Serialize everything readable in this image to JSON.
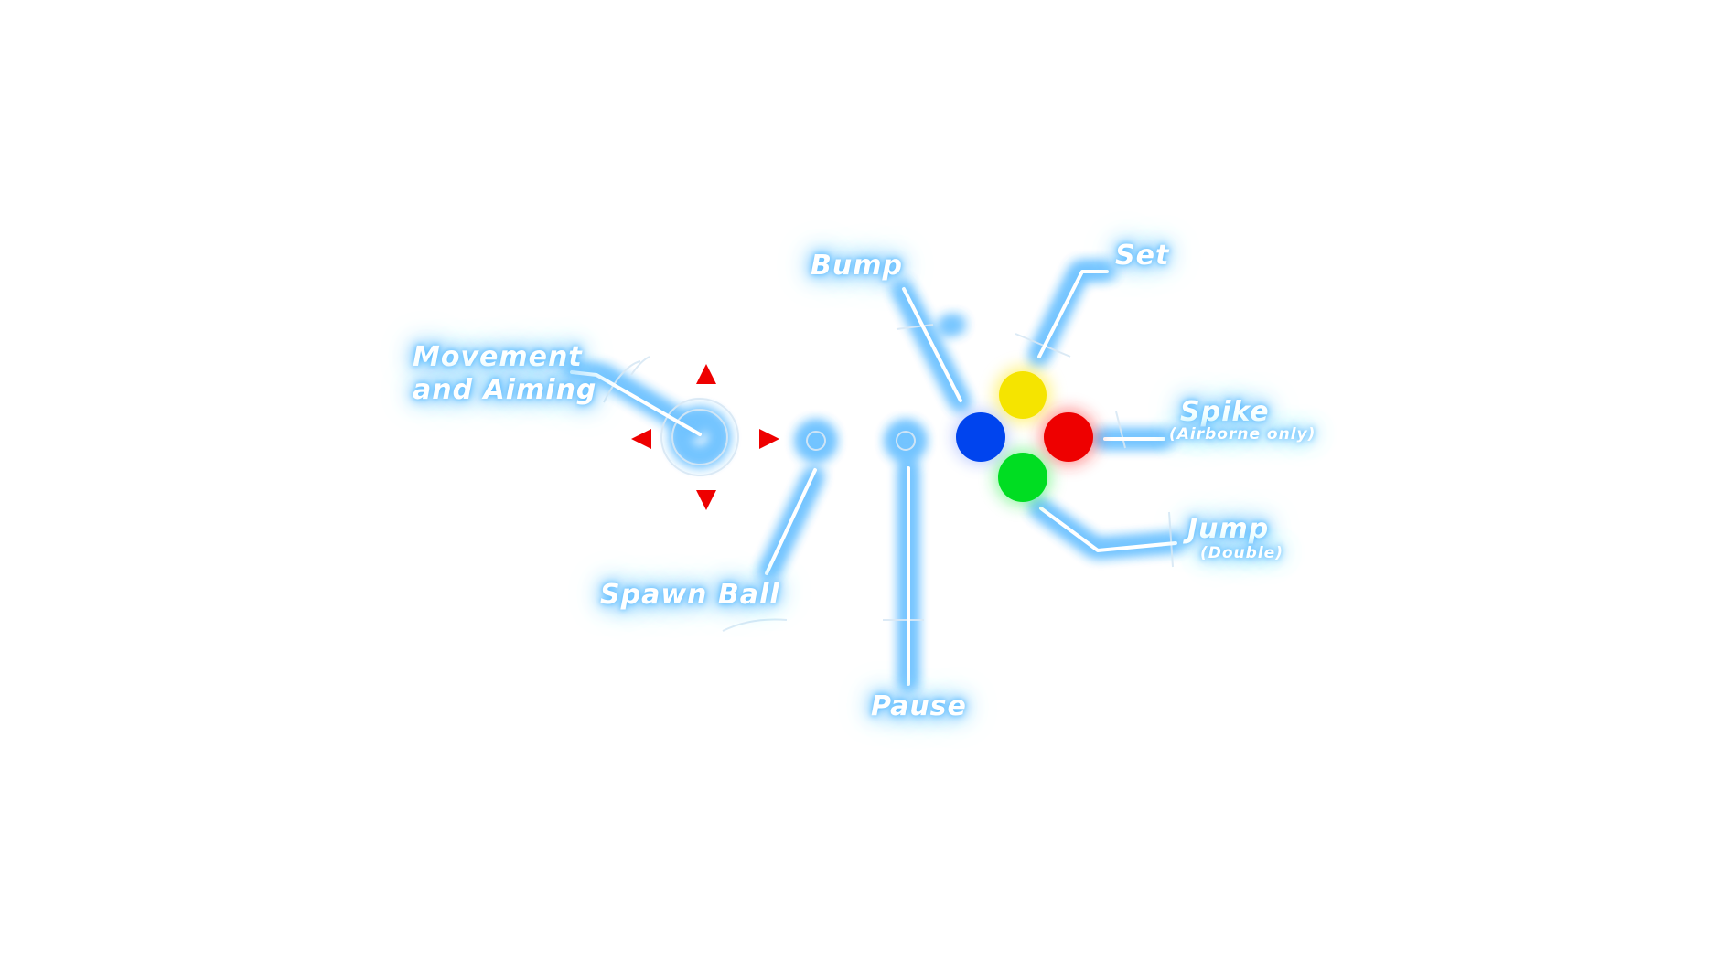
{
  "controls": {
    "movement": {
      "line1": "Movement",
      "line2": "and Aiming"
    },
    "spawn_ball": {
      "label": "Spawn Ball"
    },
    "pause": {
      "label": "Pause"
    },
    "bump": {
      "label": "Bump"
    },
    "set": {
      "label": "Set"
    },
    "spike": {
      "label": "Spike",
      "note": "(Airborne only)"
    },
    "jump": {
      "label": "Jump",
      "note": "(Double)"
    }
  },
  "dpad": {
    "arrow_color": "#ee0000",
    "arrows": [
      "arrow-up-icon",
      "arrow-down-icon",
      "arrow-left-icon",
      "arrow-right-icon"
    ]
  },
  "face_buttons": {
    "bump": {
      "icon": "blue-button-icon",
      "color": "#0044ee"
    },
    "set": {
      "icon": "yellow-button-icon",
      "color": "#f5e400"
    },
    "spike": {
      "icon": "red-button-icon",
      "color": "#ee0000"
    },
    "jump": {
      "icon": "green-button-icon",
      "color": "#00dd22"
    }
  },
  "theme": {
    "glow_color": "#56b8ff",
    "text_color": "#ffffff",
    "background": "#ffffff"
  }
}
